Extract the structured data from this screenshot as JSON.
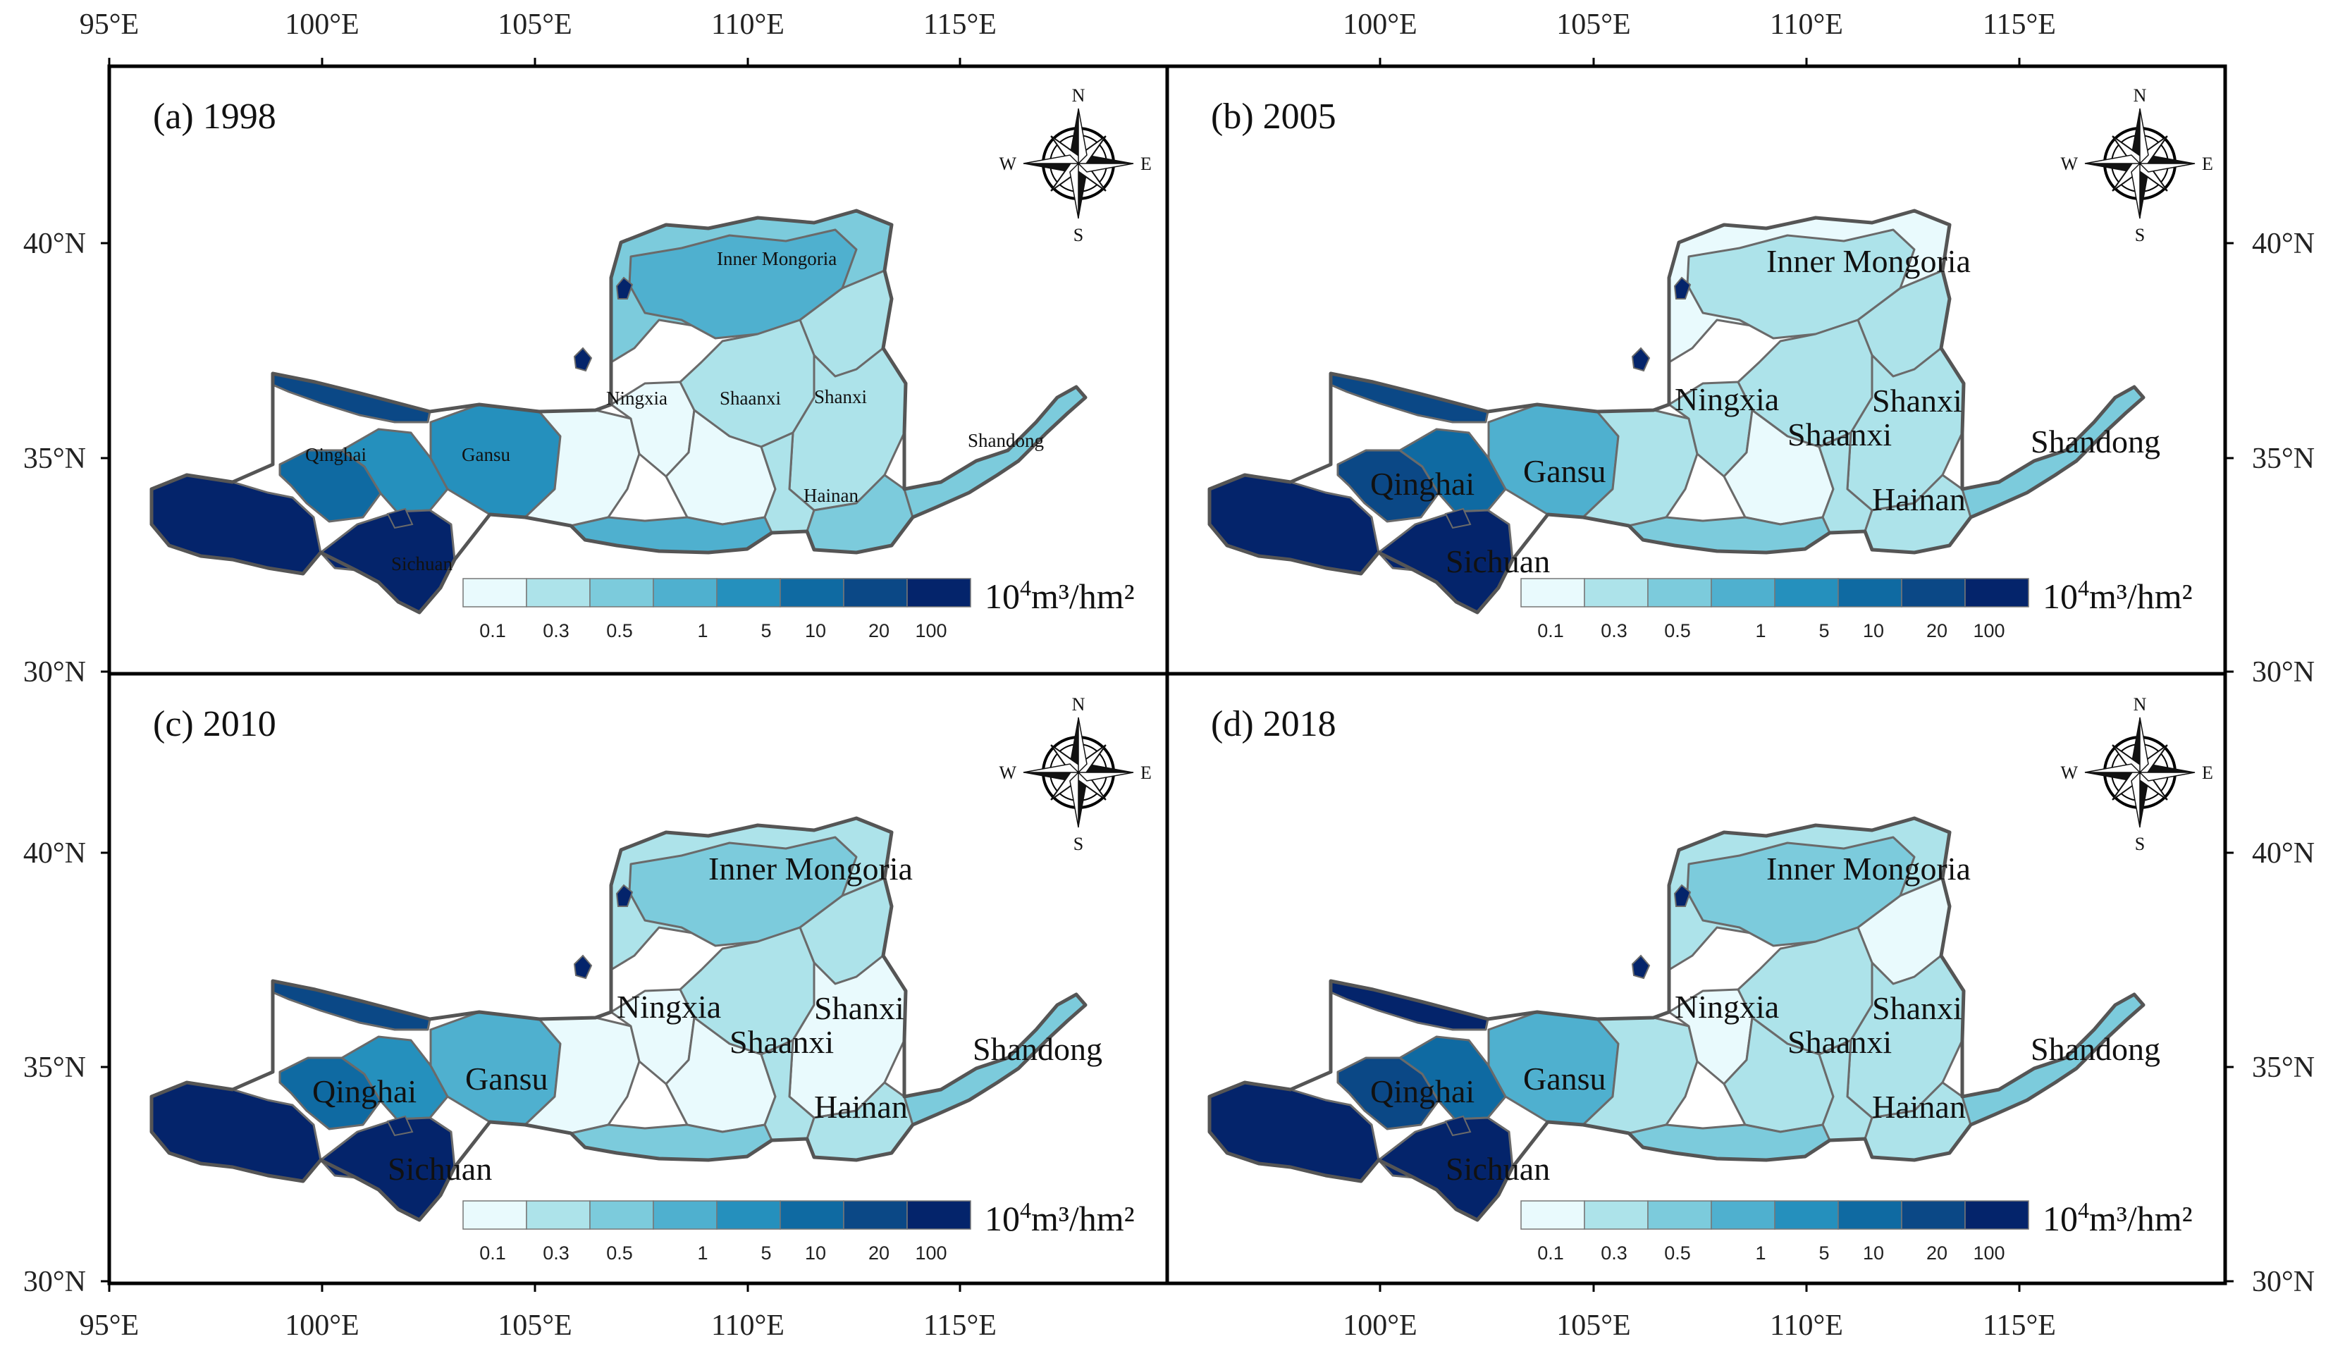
{
  "chart_data": {
    "type": "choropleth-map",
    "unit": {
      "base": "10",
      "exp": "4",
      "rest": "m³/hm²"
    },
    "classes": [
      {
        "label": "0.1",
        "color": "#e9fafd"
      },
      {
        "label": "0.3",
        "color": "#ade3ea"
      },
      {
        "label": "0.5",
        "color": "#7ccbdc"
      },
      {
        "label": "1",
        "color": "#4fb0cf"
      },
      {
        "label": "5",
        "color": "#2590bd"
      },
      {
        "label": "10",
        "color": "#0f6aa2"
      },
      {
        "label": "20",
        "color": "#0b4886"
      },
      {
        "label": "100",
        "color": "#04246b"
      }
    ],
    "lon_ticks": [
      "95°E",
      "100°E",
      "105°E",
      "110°E",
      "115°E"
    ],
    "lat_ticks": [
      "40°N",
      "35°N",
      "30°N"
    ],
    "compass": {
      "n": "N",
      "s": "S",
      "e": "E",
      "w": "W"
    },
    "panels": [
      {
        "title": "(a) 1998",
        "labels": {
          "inner_mongolia": "Inner Mongoria",
          "ningxia": "Ningxia",
          "shaanxi": "Shaanxi",
          "shanxi": "Shanxi",
          "shandong": "Shandong",
          "qinghai": "Qinghai",
          "gansu": "Gansu",
          "hainan": "Hainan",
          "sichuan": "Sichuan"
        },
        "regions": {
          "far_west": 7,
          "qinghai_n": 6,
          "qinghai_c": 5,
          "qinghai_se": 4,
          "gansu_w": 4,
          "gansu_e": 0,
          "ningxia": 0,
          "im_north": 2,
          "im_core": 3,
          "im_east": 1,
          "shaanxi_n": 1,
          "shaanxi_c": 0,
          "shanxi": 1,
          "shaanxi_s": 1,
          "hainan": 2,
          "south_band": 3,
          "shandong": 2,
          "sichuan": 7
        }
      },
      {
        "title": "(b) 2005",
        "labels": {
          "inner_mongolia": "Inner Mongoria",
          "ningxia": "Ningxia",
          "shaanxi": "Shaanxi",
          "shanxi": "Shanxi",
          "shandong": "Shandong",
          "qinghai": "Qinghai",
          "gansu": "Gansu",
          "hainan": "Hainan",
          "sichuan": "Sichuan"
        },
        "regions": {
          "far_west": 7,
          "qinghai_n": 6,
          "qinghai_c": 6,
          "qinghai_se": 5,
          "gansu_w": 3,
          "gansu_e": 1,
          "ningxia": 1,
          "im_north": 0,
          "im_core": 1,
          "im_east": 1,
          "shaanxi_n": 1,
          "shaanxi_c": 0,
          "shanxi": 1,
          "shaanxi_s": 1,
          "hainan": 1,
          "south_band": 2,
          "shandong": 2,
          "sichuan": 7
        }
      },
      {
        "title": "(c) 2010",
        "labels": {
          "inner_mongolia": "Inner Mongoria",
          "ningxia": "Ningxia",
          "shaanxi": "Shaanxi",
          "shanxi": "Shanxi",
          "shandong": "Shandong",
          "qinghai": "Qinghai",
          "gansu": "Gansu",
          "hainan": "Hainan",
          "sichuan": "Sichuan"
        },
        "regions": {
          "far_west": 7,
          "qinghai_n": 6,
          "qinghai_c": 5,
          "qinghai_se": 4,
          "gansu_w": 3,
          "gansu_e": 0,
          "ningxia": 0,
          "im_north": 1,
          "im_core": 2,
          "im_east": 1,
          "shaanxi_n": 1,
          "shaanxi_c": 0,
          "shanxi": 0,
          "shaanxi_s": 1,
          "hainan": 1,
          "south_band": 2,
          "shandong": 2,
          "sichuan": 7
        }
      },
      {
        "title": "(d) 2018",
        "labels": {
          "inner_mongolia": "Inner Mongoria",
          "ningxia": "Ningxia",
          "shaanxi": "Shaanxi",
          "shanxi": "Shanxi",
          "shandong": "Shandong",
          "qinghai": "Qinghai",
          "gansu": "Gansu",
          "hainan": "Hainan",
          "sichuan": "Sichuan"
        },
        "regions": {
          "far_west": 7,
          "qinghai_n": 7,
          "qinghai_c": 6,
          "qinghai_se": 5,
          "gansu_w": 3,
          "gansu_e": 1,
          "ningxia": 0,
          "im_north": 1,
          "im_core": 2,
          "im_east": 0,
          "shaanxi_n": 1,
          "shaanxi_c": 1,
          "shanxi": 1,
          "shaanxi_s": 1,
          "hainan": 1,
          "south_band": 2,
          "shandong": 2,
          "sichuan": 7
        }
      }
    ]
  }
}
